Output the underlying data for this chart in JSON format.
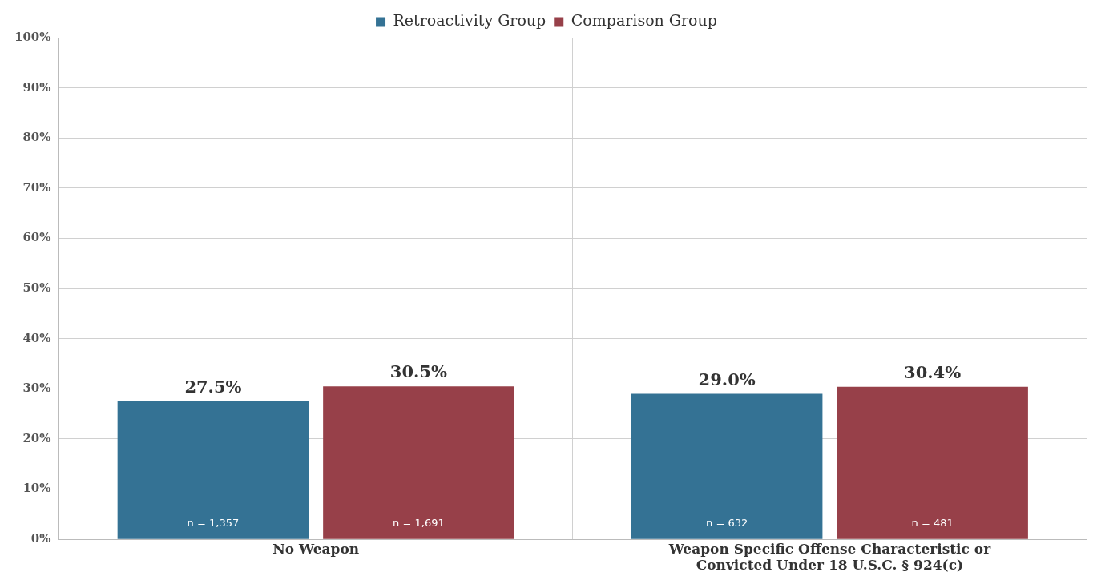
{
  "chart_data": {
    "type": "bar",
    "categories": [
      "No Weapon",
      "Weapon Specific Offense Characteristic or Convicted Under 18 U.S.C. § 924(c)"
    ],
    "series": [
      {
        "name": "Retroactivity Group",
        "color": "#347294",
        "values": [
          27.5,
          29.0
        ],
        "value_labels": [
          "27.5%",
          "29.0%"
        ]
      },
      {
        "name": "Comparison Group",
        "color": "#974049",
        "values": [
          30.5,
          30.4
        ],
        "value_labels": [
          "30.5%",
          "30.4%"
        ]
      }
    ],
    "ylim": [
      0,
      100
    ],
    "yticks": [
      {
        "value": 0,
        "label": "0%"
      },
      {
        "value": 10,
        "label": "10%"
      },
      {
        "value": 20,
        "label": "20%"
      },
      {
        "value": 30,
        "label": "30%"
      },
      {
        "value": 40,
        "label": "40%"
      },
      {
        "value": 50,
        "label": "50%"
      },
      {
        "value": 60,
        "label": "60%"
      },
      {
        "value": 70,
        "label": "70%"
      },
      {
        "value": 80,
        "label": "80%"
      },
      {
        "value": 90,
        "label": "90%"
      },
      {
        "value": 100,
        "label": "100%"
      }
    ],
    "annotations": [
      "n = 1,357",
      "n = 1,691",
      "n = 632",
      "n = 481"
    ],
    "grid": true,
    "legend": "top"
  }
}
